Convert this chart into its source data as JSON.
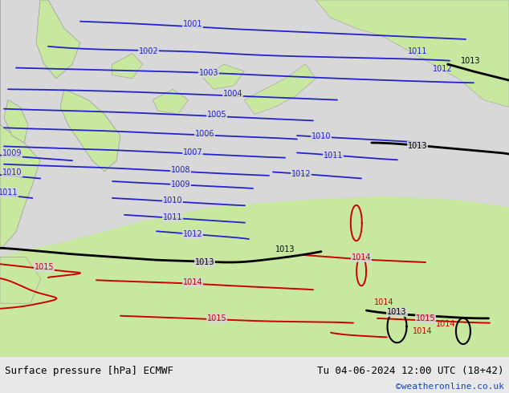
{
  "title_left": "Surface pressure [hPa] ECMWF",
  "title_right": "Tu 04-06-2024 12:00 UTC (18+42)",
  "credit": "©weatheronline.co.uk",
  "bg_gray": "#d8d8d8",
  "land_green": "#c8e8a0",
  "land_green2": "#b8e090",
  "blue_color": "#2222cc",
  "black_color": "#000000",
  "red_color": "#cc0000",
  "bottom_bar_color": "#e8e8e8",
  "figsize": [
    6.34,
    4.9
  ],
  "dpi": 100,
  "title_fontsize": 9.0,
  "credit_fontsize": 8.0,
  "credit_color": "#1144cc"
}
